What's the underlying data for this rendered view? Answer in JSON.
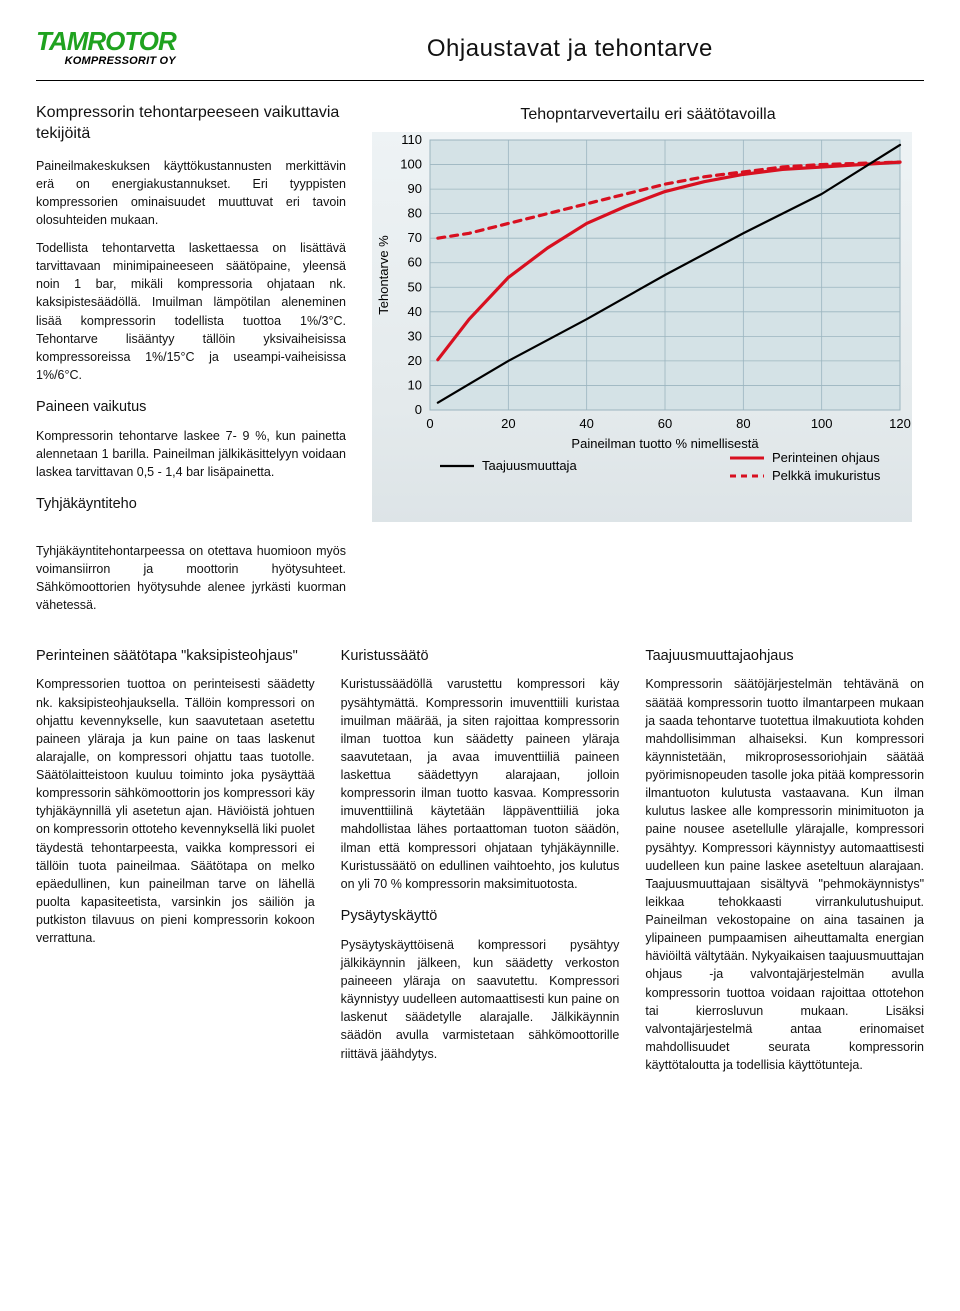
{
  "logo": {
    "main": "TAMROTOR",
    "sub": "KOMPRESSORIT OY"
  },
  "page_title": "Ohjaustavat ja tehontarve",
  "left": {
    "heading": "Kompressorin tehontarpeeseen vaikuttavia tekijöitä",
    "p1": "Paineilmakeskuksen käyttökustannusten merkittävin erä on energiakustannukset. Eri tyyppisten kompressorien ominaisuudet muuttuvat eri tavoin olosuhteiden mukaan.",
    "p2": "Todellista tehontarvetta laskettaessa on lisättävä tarvittavaan minimipaineeseen säätöpaine, yleensä noin 1 bar, mikäli kompressoria ohjataan nk. kaksipistesäädöllä. Imuilman lämpötilan aleneminen lisää kompressorin todellista tuottoa 1%/3°C. Tehontarve lisääntyy tällöin yksivaiheisissa kompressoreissa 1%/15°C ja useampi-vaiheisissa 1%/6°C.",
    "h_paineen": "Paineen vaikutus",
    "p3": "Kompressorin tehontarve laskee 7- 9 %, kun painetta alennetaan 1 barilla. Paineilman jälkikäsittelyyn voidaan laskea tarvittavan 0,5 - 1,4 bar lisäpainetta.",
    "h_tyhja": "Tyhjäkäyntiteho",
    "p4": "Tyhjäkäyntitehontarpeessa on otettava huomioon myös voimansiirron ja moottorin hyötysuhteet. Sähkömoottorien hyötysuhde alenee jyrkästi kuorman vähetessä."
  },
  "chart": {
    "title": "Tehopntarvevertailu eri säätötavoilla",
    "type": "line",
    "y_label": "Tehontarve %",
    "x_label": "Paineilman tuotto % nimellisestä",
    "xlim": [
      0,
      120
    ],
    "ylim": [
      0,
      110
    ],
    "y_ticks": [
      0,
      10,
      20,
      30,
      40,
      50,
      60,
      70,
      80,
      90,
      100,
      110
    ],
    "x_ticks": [
      0,
      20,
      40,
      60,
      80,
      100,
      120
    ],
    "background_color": "#e7edef",
    "grid_color": "#9bb5bf",
    "legend": [
      {
        "label": "Taajuusmuuttaja",
        "color": "#000000",
        "dash": ""
      },
      {
        "label": "Perinteinen ohjaus",
        "color": "#d81020",
        "dash": ""
      },
      {
        "label": "Pelkkä imukuristus",
        "color": "#d81020",
        "dash": "6 5"
      }
    ],
    "series": {
      "taajuus": {
        "color": "#000000",
        "width": 2.2,
        "dash": "",
        "points": [
          [
            2,
            3
          ],
          [
            20,
            20
          ],
          [
            40,
            37
          ],
          [
            60,
            55
          ],
          [
            80,
            72
          ],
          [
            100,
            88
          ],
          [
            120,
            108
          ]
        ]
      },
      "perinteinen": {
        "color": "#d81020",
        "width": 3.2,
        "dash": "",
        "points": [
          [
            2,
            20.5
          ],
          [
            10,
            37
          ],
          [
            20,
            54
          ],
          [
            30,
            66
          ],
          [
            40,
            76
          ],
          [
            50,
            83
          ],
          [
            60,
            89
          ],
          [
            70,
            93
          ],
          [
            80,
            96
          ],
          [
            90,
            98
          ],
          [
            100,
            99
          ],
          [
            120,
            101
          ]
        ]
      },
      "imukuristus": {
        "color": "#d81020",
        "width": 3.2,
        "dash": "7 6",
        "points": [
          [
            2,
            70
          ],
          [
            10,
            72
          ],
          [
            20,
            76
          ],
          [
            30,
            80
          ],
          [
            40,
            84
          ],
          [
            50,
            88
          ],
          [
            60,
            92
          ],
          [
            70,
            95
          ],
          [
            80,
            97
          ],
          [
            90,
            99
          ],
          [
            100,
            100
          ],
          [
            120,
            101
          ]
        ]
      }
    }
  },
  "col1": {
    "h": "Perinteinen säätötapa \"kaksipisteohjaus\"",
    "p": "Kompressorien tuottoa on perinteisesti säädetty nk. kaksipisteohjauksella. Tällöin kompressori on ohjattu kevennykselle, kun saavutetaan asetettu paineen yläraja ja kun paine on taas laskenut alarajalle, on kompressori ohjattu taas tuotolle. Säätölaitteistoon kuuluu toiminto joka pysäyttää kompressorin sähkömoottorin jos kompressori käy tyhjäkäynnillä yli asetetun ajan. Häviöistä johtuen on kompressorin ottoteho kevennyksellä liki puolet täydestä tehontarpeesta, vaikka kompressori ei tällöin tuota paineilmaa. Säätötapa on melko epäedullinen, kun paineilman tarve on lähellä puolta kapasiteetista, varsinkin jos säiliön ja putkiston tilavuus on pieni kompressorin kokoon verrattuna."
  },
  "col2": {
    "h1": "Kuristussäätö",
    "p1": "Kuristussäädöllä varustettu kompressori käy pysähtymättä. Kompressorin imuventtiili kuristaa imuilman määrää, ja siten rajoittaa kompressorin ilman tuottoa kun säädetty paineen yläraja saavutetaan, ja avaa imuventtiiliä paineen laskettua säädettyyn alarajaan, jolloin kompressorin ilman tuotto kasvaa. Kompressorin imuventtiilinä käytetään läppäventtiiliä joka mahdollistaa lähes portaattoman tuoton säädön, ilman että kompressori ohjataan tyhjäkäynnille. Kuristussäätö on edullinen vaihtoehto, jos kulutus on yli 70 % kompressorin maksimituotosta.",
    "h2": "Pysäytyskäyttö",
    "p2": "Pysäytyskäyttöisenä kompressori pysähtyy jälkikäynnin jälkeen, kun säädetty verkoston paineeen yläraja on saavutettu. Kompressori käynnistyy uudelleen automaattisesti kun paine on laskenut säädetylle alarajalle. Jälkikäynnin säädön avulla varmistetaan sähkömoottorille riittävä jäähdytys."
  },
  "col3": {
    "h": "Taajuusmuuttajaohjaus",
    "p": "Kompressorin säätöjärjestelmän tehtävänä on säätää kompressorin tuotto ilmantarpeen mukaan ja saada tehontarve tuotettua ilmakuutiota kohden mahdollisimman alhaiseksi. Kun kompressori käynnistetään, mikroprosessoriohjain säätää pyörimisnopeuden tasolle joka pitää kompressorin ilmantuoton kulutusta vastaavana. Kun ilman kulutus laskee alle kompressorin minimituoton ja paine nousee asetellulle ylärajalle, kompressori pysähtyy. Kompressori käynnistyy automaattisesti uudelleen kun paine laskee aseteltuun alarajaan. Taajuusmuuttajaan sisältyvä \"pehmokäynnistys\" leikkaa tehokkaasti virrankulutushuiput. Paineilman vekostopaine on aina tasainen ja ylipaineen pumpaamisen aiheuttamalta energian häviöiltä vältytään. Nykyaikaisen taajuusmuuttajan ohjaus -ja valvontajärjestelmän avulla kompressorin tuottoa voidaan rajoittaa ottotehon tai kierrosluvun mukaan. Lisäksi valvontajärjestelmä antaa erinomaiset mahdollisuudet seurata kompressorin käyttötaloutta ja todellisia käyttötunteja."
  }
}
